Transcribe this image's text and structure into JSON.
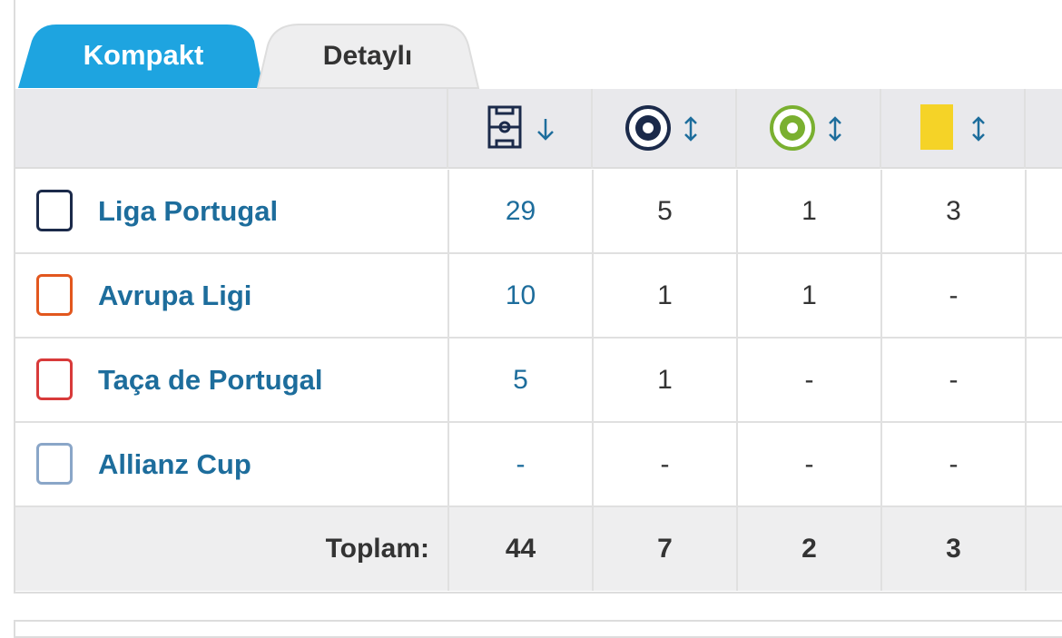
{
  "tabs": [
    "Kompakt",
    "Detaylı"
  ],
  "table": {
    "rows": [
      [
        "Liga Portugal",
        29,
        5,
        1,
        3
      ],
      [
        "Avrupa Ligi",
        10,
        1,
        1,
        "-"
      ],
      [
        "Taça de Portugal",
        5,
        1,
        "-",
        "-"
      ],
      [
        "Allianz Cup",
        "-",
        "-",
        "-",
        "-"
      ]
    ],
    "footer": {
      "label": "Toplam:",
      "values": [
        44,
        7,
        2,
        3
      ]
    }
  }
}
